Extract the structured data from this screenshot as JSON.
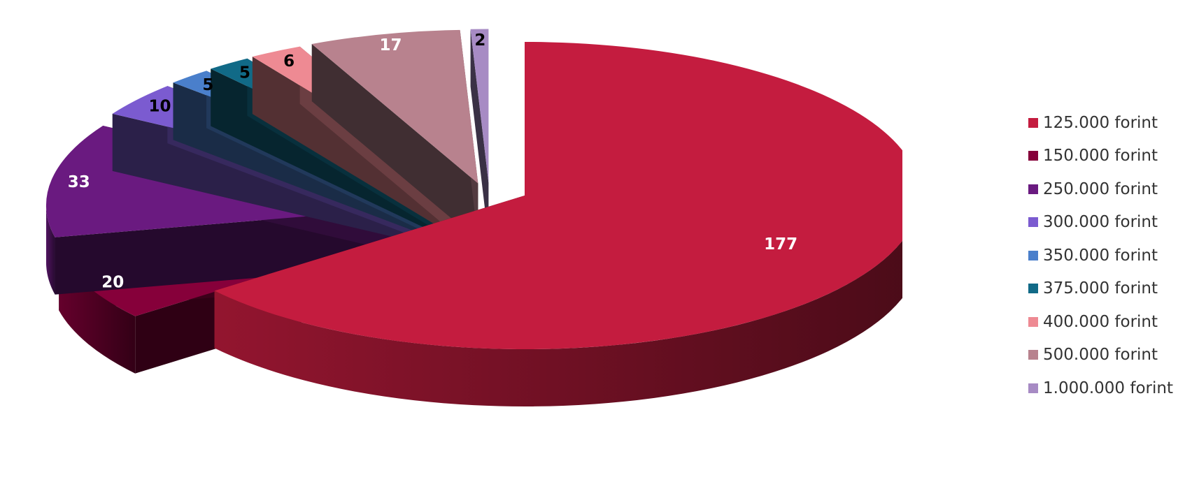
{
  "chart_data": {
    "type": "pie",
    "style": "3d-exploded",
    "title": "",
    "legend_position": "right",
    "categories": [
      "125.000 forint",
      "150.000 forint",
      "250.000 forint",
      "300.000 forint",
      "350.000 forint",
      "375.000 forint",
      "400.000 forint",
      "500.000 forint",
      "1.000.000 forint"
    ],
    "values": [
      177,
      20,
      33,
      10,
      5,
      5,
      6,
      17,
      2
    ],
    "data_labels": [
      "177",
      "20",
      "33",
      "10",
      "5",
      "5",
      "6",
      "17",
      "2"
    ],
    "colors": [
      "#C41C3F",
      "#86003A",
      "#6A1A80",
      "#7B5BD0",
      "#4A7FCB",
      "#116A87",
      "#EE8A93",
      "#B8828E",
      "#A78BC4"
    ],
    "label_colors": [
      "#FFFFFF",
      "#FFFFFF",
      "#FFFFFF",
      "#000000",
      "#000000",
      "#000000",
      "#000000",
      "#FFFFFF",
      "#000000"
    ]
  }
}
